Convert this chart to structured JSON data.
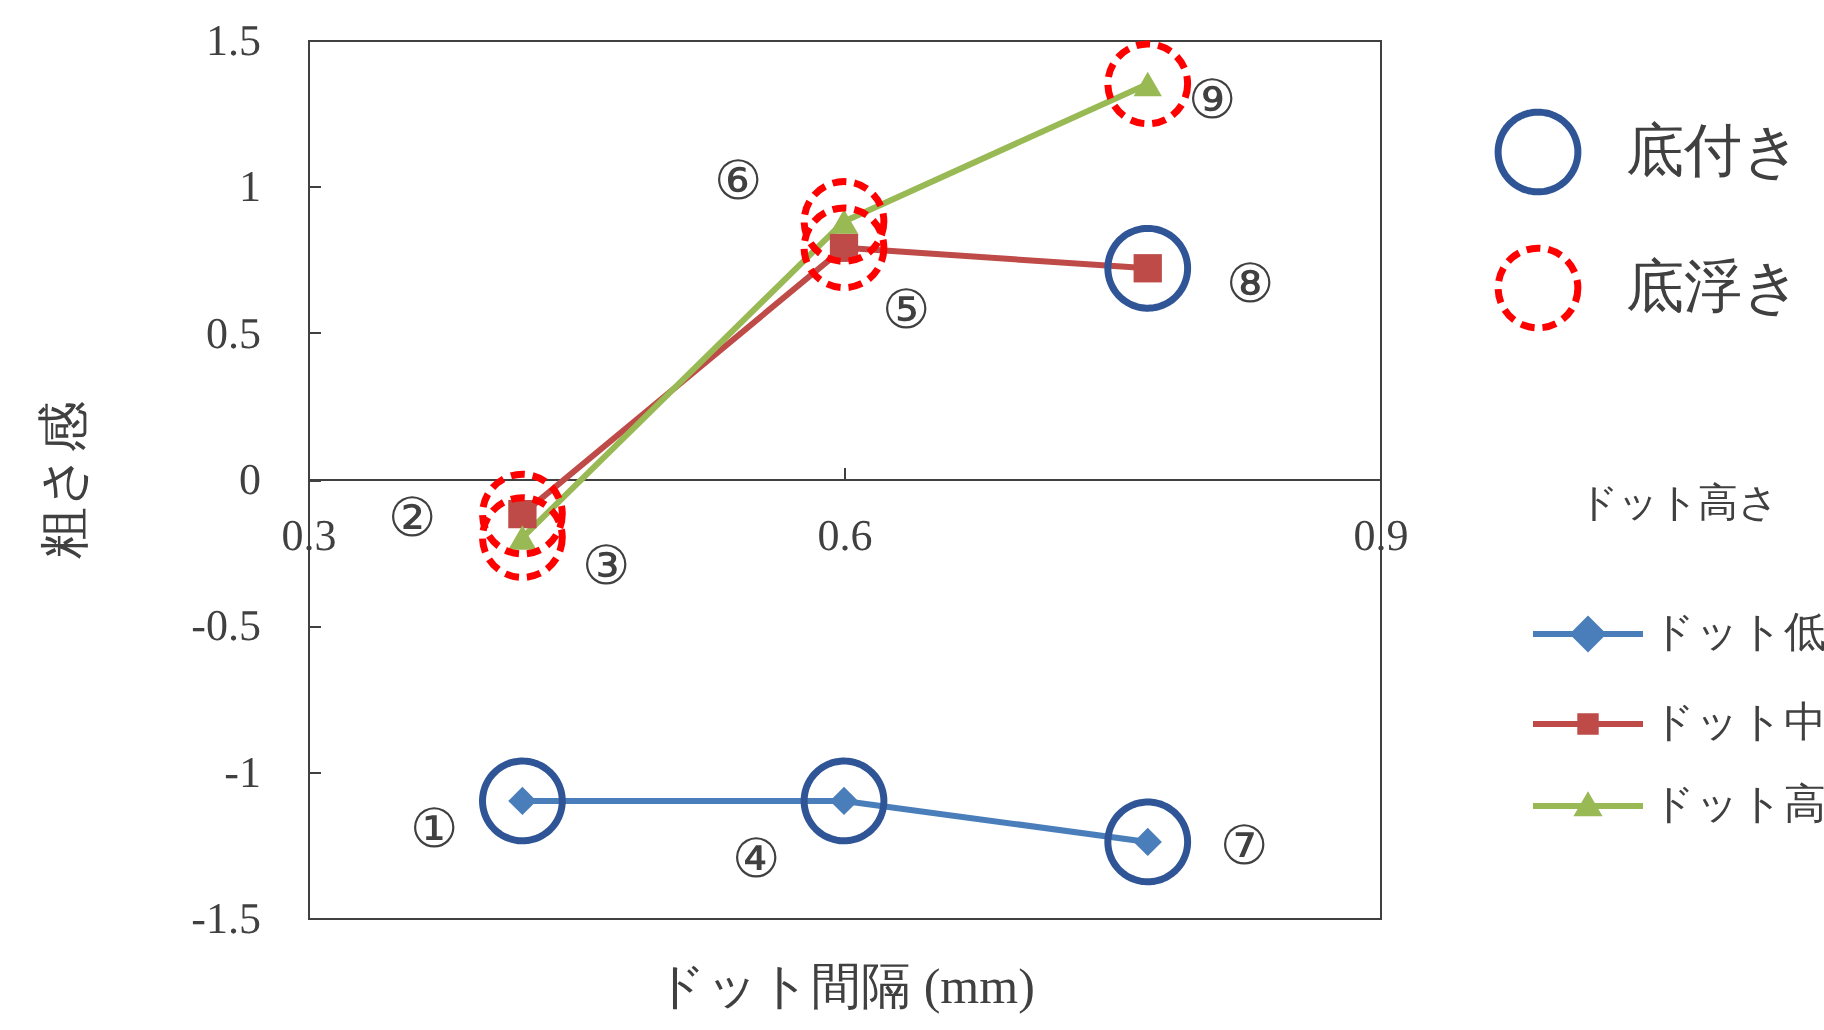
{
  "chart_data": {
    "type": "line",
    "xlabel": "ドット間隔 (mm)",
    "ylabel": "粗さ感",
    "legend_title": "ドット高さ",
    "x": [
      0.42,
      0.6,
      0.77
    ],
    "xlim": [
      0.3,
      0.9
    ],
    "xticks": [
      0.3,
      0.6,
      0.9
    ],
    "ylim": [
      -1.5,
      1.5
    ],
    "yticks": [
      -1.5,
      -1,
      -0.5,
      0,
      0.5,
      1,
      1.5
    ],
    "legend": "right",
    "series": [
      {
        "name": "ドット低",
        "color": "#4a7ebb",
        "marker": "diamond",
        "values": [
          -1.1,
          -1.1,
          -1.24
        ]
      },
      {
        "name": "ドット中",
        "color": "#be4b48",
        "marker": "square",
        "values": [
          -0.12,
          0.79,
          0.72
        ]
      },
      {
        "name": "ドット高",
        "color": "#98b954",
        "marker": "triangle",
        "values": [
          -0.2,
          0.88,
          1.35
        ]
      },
      {
        "name": "底付き",
        "type": "scatter",
        "color": "#2f5597",
        "marker": "circle",
        "line_style": "solid",
        "x": [
          0.42,
          0.6,
          0.77,
          0.77
        ],
        "values": [
          -1.1,
          -1.1,
          -1.24,
          0.72
        ]
      },
      {
        "name": "底浮き",
        "type": "scatter",
        "color": "#ff0000",
        "marker": "circle",
        "line_style": "dashed",
        "x": [
          0.42,
          0.42,
          0.6,
          0.6,
          0.77
        ],
        "values": [
          -0.12,
          -0.2,
          0.79,
          0.88,
          1.35
        ]
      }
    ],
    "annotations": [
      {
        "text": "①",
        "x": 0.42,
        "y": -1.1
      },
      {
        "text": "②",
        "x": 0.42,
        "y": -0.12
      },
      {
        "text": "③",
        "x": 0.42,
        "y": -0.2
      },
      {
        "text": "④",
        "x": 0.6,
        "y": -1.1
      },
      {
        "text": "⑤",
        "x": 0.6,
        "y": 0.79
      },
      {
        "text": "⑥",
        "x": 0.6,
        "y": 0.88
      },
      {
        "text": "⑦",
        "x": 0.77,
        "y": -1.24
      },
      {
        "text": "⑧",
        "x": 0.77,
        "y": 0.72
      },
      {
        "text": "⑨",
        "x": 0.77,
        "y": 1.35
      }
    ]
  }
}
